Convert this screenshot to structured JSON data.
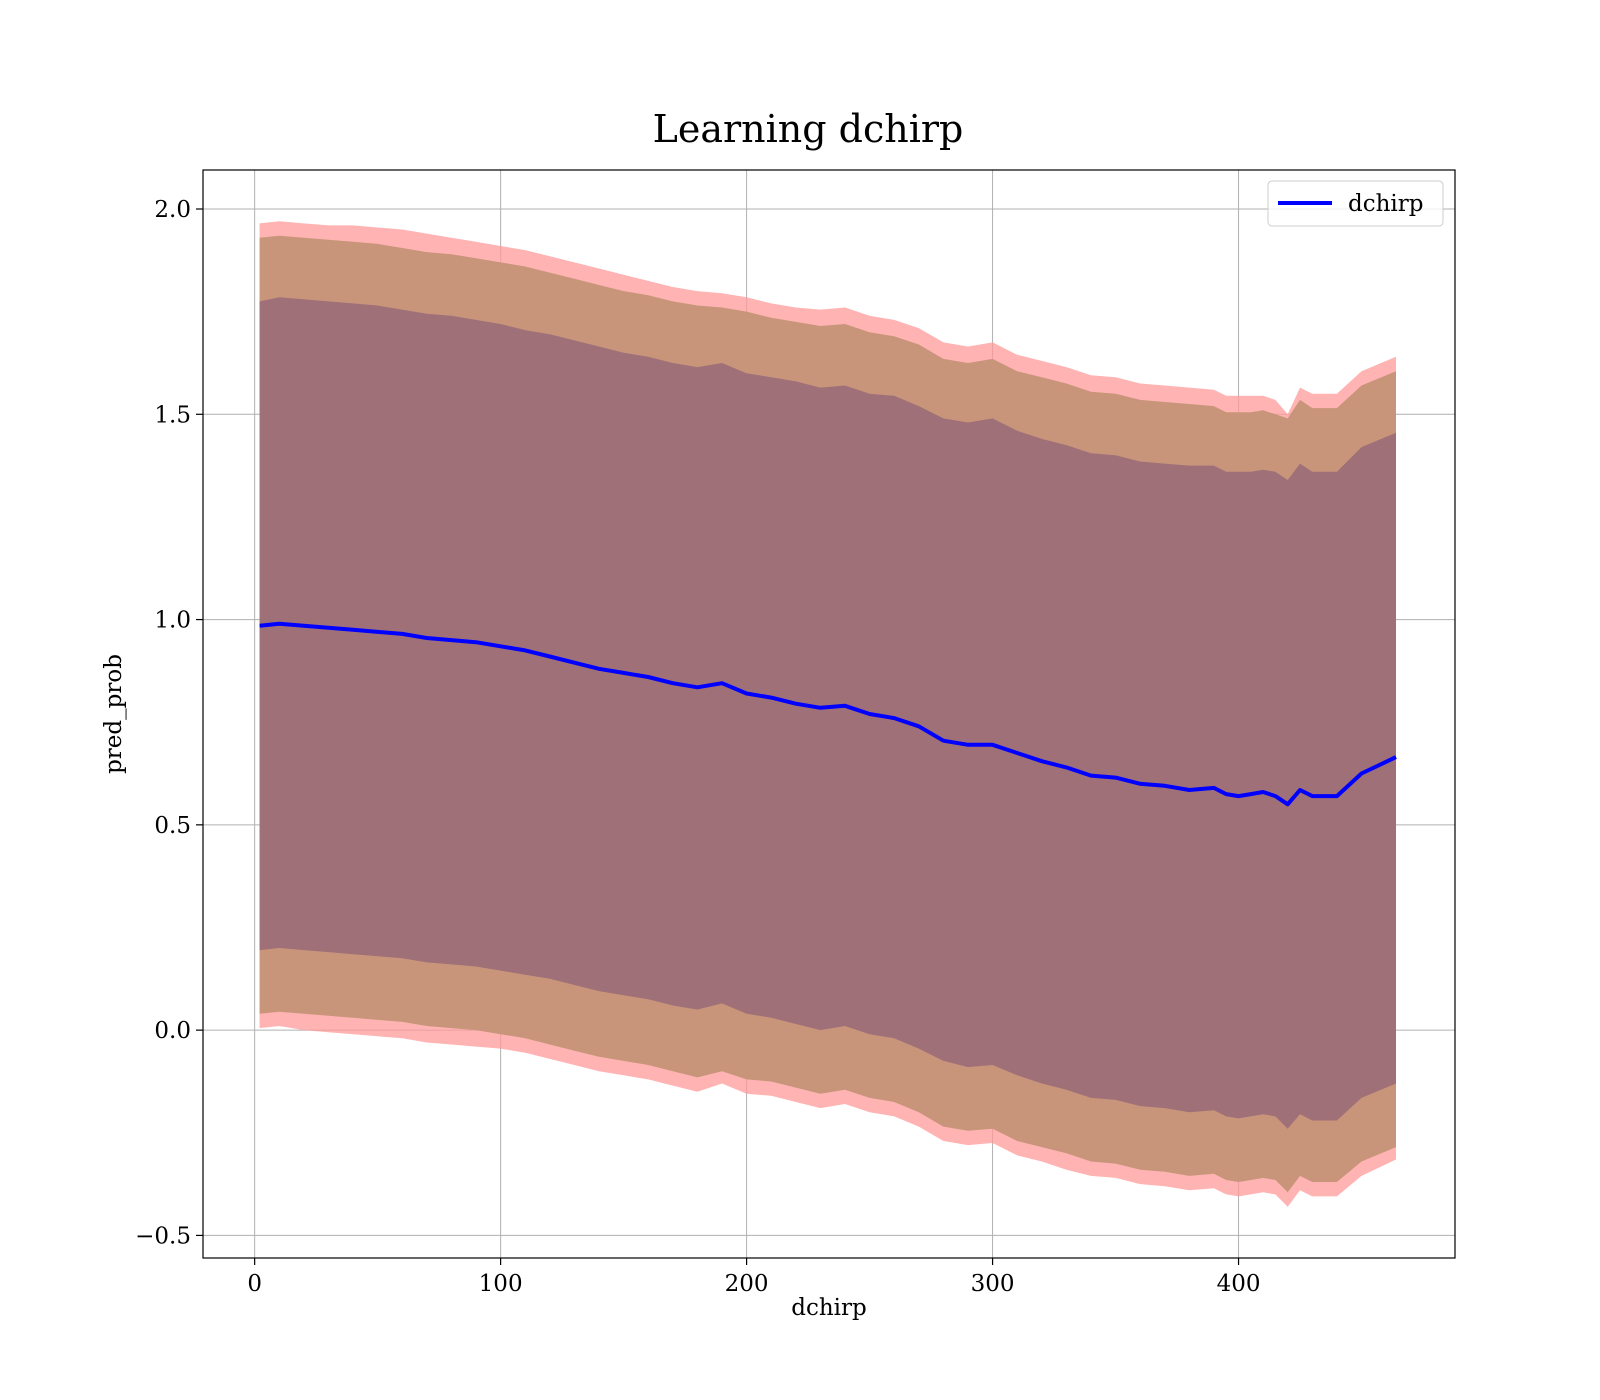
{
  "chart_data": {
    "type": "line",
    "title": "Learning dchirp",
    "xlabel": "dchirp",
    "ylabel": "pred_prob",
    "xlim": [
      -21,
      488
    ],
    "ylim": [
      -0.555,
      2.095
    ],
    "xticks": [
      0,
      100,
      200,
      300,
      400
    ],
    "yticks": [
      -0.5,
      0.0,
      0.5,
      1.0,
      1.5,
      2.0
    ],
    "xtick_labels": [
      "0",
      "100",
      "200",
      "300",
      "400"
    ],
    "ytick_labels": [
      "−0.5",
      "0.0",
      "0.5",
      "1.0",
      "1.5",
      "2.0"
    ],
    "grid": true,
    "legend": {
      "position": "top-right",
      "entries": [
        "dchirp"
      ]
    },
    "colors": {
      "line": "#0000ff",
      "band_outer": "#ff9a9a",
      "band_middle": "#c8957a",
      "band_inner": "#a07079"
    },
    "series": [
      {
        "name": "dchirp",
        "x": [
          2,
          10,
          20,
          30,
          40,
          50,
          60,
          70,
          80,
          90,
          100,
          110,
          120,
          130,
          140,
          150,
          160,
          170,
          180,
          190,
          200,
          210,
          220,
          230,
          240,
          250,
          260,
          270,
          280,
          290,
          300,
          310,
          320,
          330,
          340,
          350,
          360,
          370,
          380,
          390,
          395,
          400,
          405,
          410,
          415,
          420,
          425,
          430,
          440,
          450,
          464
        ],
        "y": [
          0.985,
          0.99,
          0.985,
          0.98,
          0.975,
          0.97,
          0.965,
          0.955,
          0.95,
          0.945,
          0.935,
          0.925,
          0.91,
          0.895,
          0.88,
          0.87,
          0.86,
          0.845,
          0.835,
          0.845,
          0.82,
          0.81,
          0.795,
          0.785,
          0.79,
          0.77,
          0.76,
          0.74,
          0.705,
          0.695,
          0.695,
          0.675,
          0.655,
          0.64,
          0.62,
          0.615,
          0.6,
          0.595,
          0.585,
          0.59,
          0.575,
          0.57,
          0.575,
          0.58,
          0.57,
          0.55,
          0.585,
          0.57,
          0.57,
          0.625,
          0.665
        ]
      }
    ],
    "bands": [
      {
        "x": [
          2,
          10,
          20,
          30,
          40,
          50,
          60,
          70,
          80,
          90,
          100,
          110,
          120,
          130,
          140,
          150,
          160,
          170,
          180,
          190,
          200,
          210,
          220,
          230,
          240,
          250,
          260,
          270,
          280,
          290,
          300,
          310,
          320,
          330,
          340,
          350,
          360,
          370,
          380,
          390,
          395,
          400,
          405,
          410,
          415,
          420,
          425,
          430,
          440,
          450,
          464
        ],
        "upper": [
          1.965,
          1.97,
          1.965,
          1.96,
          1.96,
          1.955,
          1.95,
          1.94,
          1.93,
          1.92,
          1.91,
          1.9,
          1.885,
          1.87,
          1.855,
          1.84,
          1.825,
          1.81,
          1.8,
          1.795,
          1.785,
          1.77,
          1.76,
          1.755,
          1.76,
          1.74,
          1.73,
          1.71,
          1.675,
          1.665,
          1.675,
          1.645,
          1.63,
          1.615,
          1.595,
          1.59,
          1.575,
          1.57,
          1.565,
          1.56,
          1.545,
          1.545,
          1.545,
          1.545,
          1.535,
          1.5,
          1.565,
          1.55,
          1.55,
          1.605,
          1.64
        ],
        "lower": [
          0.005,
          0.01,
          0.0,
          -0.005,
          -0.01,
          -0.015,
          -0.02,
          -0.03,
          -0.035,
          -0.04,
          -0.045,
          -0.055,
          -0.07,
          -0.085,
          -0.1,
          -0.11,
          -0.12,
          -0.135,
          -0.15,
          -0.13,
          -0.155,
          -0.16,
          -0.175,
          -0.19,
          -0.18,
          -0.2,
          -0.21,
          -0.235,
          -0.27,
          -0.28,
          -0.275,
          -0.305,
          -0.32,
          -0.34,
          -0.355,
          -0.36,
          -0.375,
          -0.38,
          -0.39,
          -0.385,
          -0.4,
          -0.405,
          -0.4,
          -0.395,
          -0.4,
          -0.43,
          -0.39,
          -0.405,
          -0.405,
          -0.355,
          -0.315
        ]
      },
      {
        "x": [
          2,
          10,
          20,
          30,
          40,
          50,
          60,
          70,
          80,
          90,
          100,
          110,
          120,
          130,
          140,
          150,
          160,
          170,
          180,
          190,
          200,
          210,
          220,
          230,
          240,
          250,
          260,
          270,
          280,
          290,
          300,
          310,
          320,
          330,
          340,
          350,
          360,
          370,
          380,
          390,
          395,
          400,
          405,
          410,
          415,
          420,
          425,
          430,
          440,
          450,
          464
        ],
        "upper": [
          1.93,
          1.935,
          1.93,
          1.925,
          1.92,
          1.915,
          1.905,
          1.895,
          1.89,
          1.88,
          1.87,
          1.86,
          1.845,
          1.83,
          1.815,
          1.8,
          1.79,
          1.775,
          1.765,
          1.76,
          1.75,
          1.735,
          1.725,
          1.715,
          1.72,
          1.7,
          1.69,
          1.67,
          1.635,
          1.625,
          1.635,
          1.605,
          1.59,
          1.575,
          1.555,
          1.55,
          1.535,
          1.53,
          1.525,
          1.52,
          1.505,
          1.505,
          1.505,
          1.51,
          1.5,
          1.49,
          1.535,
          1.515,
          1.515,
          1.57,
          1.605
        ],
        "lower": [
          0.04,
          0.045,
          0.04,
          0.035,
          0.03,
          0.025,
          0.02,
          0.01,
          0.005,
          0.0,
          -0.01,
          -0.02,
          -0.035,
          -0.05,
          -0.065,
          -0.075,
          -0.085,
          -0.1,
          -0.115,
          -0.1,
          -0.12,
          -0.125,
          -0.14,
          -0.155,
          -0.145,
          -0.165,
          -0.175,
          -0.2,
          -0.235,
          -0.245,
          -0.24,
          -0.27,
          -0.285,
          -0.3,
          -0.32,
          -0.325,
          -0.34,
          -0.345,
          -0.355,
          -0.35,
          -0.365,
          -0.37,
          -0.365,
          -0.36,
          -0.365,
          -0.395,
          -0.355,
          -0.37,
          -0.37,
          -0.32,
          -0.285
        ]
      },
      {
        "x": [
          2,
          10,
          20,
          30,
          40,
          50,
          60,
          70,
          80,
          90,
          100,
          110,
          120,
          130,
          140,
          150,
          160,
          170,
          180,
          190,
          200,
          210,
          220,
          230,
          240,
          250,
          260,
          270,
          280,
          290,
          300,
          310,
          320,
          330,
          340,
          350,
          360,
          370,
          380,
          390,
          395,
          400,
          405,
          410,
          415,
          420,
          425,
          430,
          440,
          450,
          464
        ],
        "upper": [
          1.775,
          1.785,
          1.78,
          1.775,
          1.77,
          1.765,
          1.755,
          1.745,
          1.74,
          1.73,
          1.72,
          1.705,
          1.695,
          1.68,
          1.665,
          1.65,
          1.64,
          1.625,
          1.615,
          1.625,
          1.6,
          1.59,
          1.58,
          1.565,
          1.57,
          1.55,
          1.545,
          1.52,
          1.49,
          1.48,
          1.49,
          1.46,
          1.44,
          1.425,
          1.405,
          1.4,
          1.385,
          1.38,
          1.375,
          1.375,
          1.36,
          1.36,
          1.36,
          1.365,
          1.36,
          1.34,
          1.38,
          1.36,
          1.36,
          1.42,
          1.455
        ],
        "lower": [
          0.195,
          0.2,
          0.195,
          0.19,
          0.185,
          0.18,
          0.175,
          0.165,
          0.16,
          0.155,
          0.145,
          0.135,
          0.125,
          0.11,
          0.095,
          0.085,
          0.075,
          0.06,
          0.05,
          0.065,
          0.04,
          0.03,
          0.015,
          0.0,
          0.01,
          -0.01,
          -0.02,
          -0.045,
          -0.075,
          -0.09,
          -0.085,
          -0.11,
          -0.13,
          -0.145,
          -0.165,
          -0.17,
          -0.185,
          -0.19,
          -0.2,
          -0.195,
          -0.21,
          -0.215,
          -0.21,
          -0.205,
          -0.21,
          -0.24,
          -0.205,
          -0.22,
          -0.22,
          -0.165,
          -0.13
        ]
      }
    ]
  }
}
